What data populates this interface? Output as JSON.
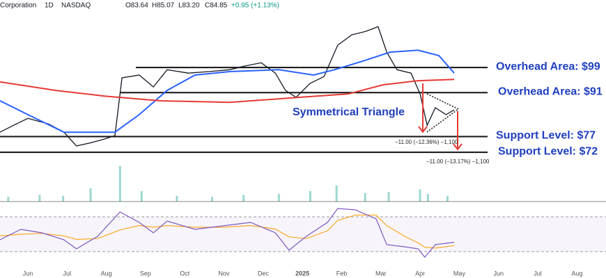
{
  "chart_data": {
    "type": "line",
    "header": {
      "symbol": "Corporation",
      "interval": "1D",
      "exchange": "NASDAQ",
      "open": "O83.64",
      "high": "H85.07",
      "low": "L83.20",
      "close": "C84.85",
      "change": "+0.95 (+1.13%)"
    },
    "pattern_label": "Symmetrical Triangle",
    "measures": [
      "−11.00 (−12.36%) −1,100",
      "−11.00 (−13.17%) −1,100"
    ],
    "xlim": [
      -0.71,
      14.74
    ],
    "xticks": [
      {
        "value": 0,
        "label": "Jun"
      },
      {
        "value": 1,
        "label": "Jul"
      },
      {
        "value": 2,
        "label": "Aug"
      },
      {
        "value": 3,
        "label": "Sep"
      },
      {
        "value": 4,
        "label": "Oct"
      },
      {
        "value": 5,
        "label": "Nov"
      },
      {
        "value": 6,
        "label": "Dec"
      },
      {
        "value": 7,
        "label": "2025"
      },
      {
        "value": 8,
        "label": "Feb"
      },
      {
        "value": 9,
        "label": "Mar"
      },
      {
        "value": 10,
        "label": "Apr"
      },
      {
        "value": 11,
        "label": "May"
      },
      {
        "value": 12,
        "label": "Jun"
      },
      {
        "value": 13,
        "label": "Jul"
      },
      {
        "value": 14,
        "label": "Aug"
      }
    ],
    "ylim": [
      56.3,
      120.5
    ],
    "levels": [
      {
        "value": 99,
        "label": "Overhead Area: $99"
      },
      {
        "value": 91,
        "label": "Overhead Area: $91"
      },
      {
        "value": 77,
        "label": "Support Level: $77"
      },
      {
        "value": 72,
        "label": "Support Level: $72"
      }
    ],
    "series": [
      {
        "color": "#131722",
        "x": [
          -0.71,
          -0.36,
          0,
          0.53,
          0.92,
          1.24,
          1.6,
          1.95,
          2.22,
          2.4,
          2.84,
          3.2,
          3.55,
          4.09,
          4.62,
          5.15,
          5.51,
          5.95,
          6.31,
          6.57,
          6.84,
          7.19,
          7.55,
          7.9,
          8.26,
          8.61,
          8.93,
          9.15,
          9.41,
          9.77,
          10.0,
          10.18,
          10.39,
          10.66,
          10.87
        ],
        "values": [
          78.4,
          80.6,
          82.8,
          81,
          78.4,
          74,
          75,
          76.2,
          77.3,
          95.7,
          96.6,
          92.8,
          98.3,
          97.2,
          97.7,
          98.3,
          99.4,
          100.5,
          97.2,
          91.7,
          89.5,
          93.9,
          96.1,
          106.1,
          109.4,
          110.5,
          112,
          103.9,
          98.3,
          97.2,
          90.6,
          80.6,
          86.2,
          84,
          85.5
        ]
      },
      {
        "color": "#2962ff",
        "x": [
          -0.71,
          0,
          0.92,
          1.6,
          2.22,
          2.84,
          3.55,
          4.26,
          5.15,
          6.4,
          7.28,
          7.82,
          8.53,
          9.24,
          9.95,
          10.48,
          10.87
        ],
        "values": [
          88.4,
          84,
          78.4,
          78.4,
          78.4,
          84,
          91.7,
          96.6,
          97.7,
          98.3,
          96.6,
          98.3,
          101,
          103.9,
          104.5,
          102.8,
          97.2
        ]
      },
      {
        "color": "#e53935",
        "x": [
          -0.71,
          0.71,
          1.95,
          3.37,
          5.15,
          6.93,
          8.17,
          9.06,
          9.95,
          10.87
        ],
        "values": [
          94.4,
          91.7,
          89.9,
          88.4,
          87.9,
          89.5,
          90.6,
          93.5,
          94.8,
          95.2
        ]
      }
    ],
    "volume": {
      "color": "#26a69a",
      "ylim": [
        0,
        110
      ],
      "x": [
        -0.5,
        0.3,
        0.9,
        1.6,
        2.35,
        2.9,
        3.8,
        4.7,
        5.5,
        6.4,
        7.2,
        7.87,
        8.6,
        9.2,
        10.0,
        10.2,
        10.7
      ],
      "values": [
        10,
        14,
        12,
        28,
        75,
        22,
        12,
        10,
        14,
        16,
        22,
        34,
        18,
        20,
        26,
        16,
        12
      ]
    },
    "rsi": {
      "color": "#7e57c2",
      "signal_color": "#f9a825",
      "ylim": [
        17.2,
        83.6
      ],
      "yticks": [
        30,
        70
      ],
      "x": [
        -0.71,
        -0.18,
        0.36,
        0.92,
        1.24,
        1.78,
        2.35,
        2.84,
        3.2,
        3.55,
        4.26,
        4.97,
        5.68,
        6.31,
        6.66,
        7.1,
        7.64,
        7.9,
        8.35,
        8.88,
        9.15,
        9.59,
        9.95,
        10.12,
        10.39,
        10.87
      ],
      "values": [
        43.6,
        55.6,
        51.6,
        43.6,
        33.2,
        47.6,
        75.6,
        63.6,
        51.6,
        65.2,
        55.6,
        59.6,
        63.6,
        51.6,
        31.6,
        47.6,
        63.6,
        79.6,
        78,
        67.6,
        38,
        35.6,
        33.2,
        23.6,
        38,
        40.8
      ],
      "signal": [
        48,
        50,
        51,
        48,
        44,
        45,
        55,
        60,
        58,
        60,
        58,
        58,
        60,
        56,
        47,
        45,
        54,
        66,
        72,
        72,
        60,
        48,
        40,
        35,
        34,
        37
      ]
    }
  }
}
